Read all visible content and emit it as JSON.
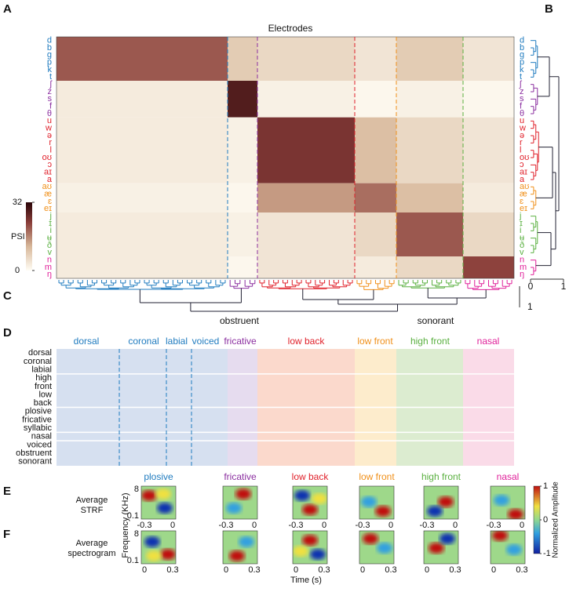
{
  "panel_labels": [
    "A",
    "B",
    "C",
    "D",
    "E",
    "F"
  ],
  "panel_a": {
    "title": "Electrodes",
    "groups": [
      {
        "name": "plosive",
        "color": "#1f7bbf",
        "phonemes": [
          "d",
          "b",
          "g",
          "p",
          "k",
          "t"
        ]
      },
      {
        "name": "fricative",
        "color": "#8b2fa0",
        "phonemes": [
          "ʃ",
          "z",
          "s",
          "f",
          "θ"
        ]
      },
      {
        "name": "low back",
        "color": "#e0202a",
        "phonemes": [
          "u",
          "w",
          "ə",
          "r",
          "l",
          "oʊ",
          "ɔ",
          "aɪ",
          "a"
        ]
      },
      {
        "name": "low front",
        "color": "#f0901a",
        "phonemes": [
          "aʊ",
          "æ",
          "ɛ",
          "eɪ"
        ]
      },
      {
        "name": "high front",
        "color": "#5ab040",
        "phonemes": [
          "j",
          "ɪ",
          "i",
          "ʉ",
          "ð",
          "v"
        ]
      },
      {
        "name": "nasal",
        "color": "#e0209a",
        "phonemes": [
          "n",
          "m",
          "ŋ"
        ]
      }
    ],
    "matrix": [
      [
        20,
        8,
        6,
        4,
        8,
        4
      ],
      [
        3,
        28,
        2,
        1,
        2,
        1
      ],
      [
        3,
        2,
        24,
        10,
        6,
        4
      ],
      [
        2,
        1,
        14,
        18,
        10,
        3
      ],
      [
        3,
        2,
        4,
        6,
        20,
        6
      ],
      [
        3,
        1,
        4,
        3,
        6,
        22
      ]
    ],
    "colorbar": {
      "label": "PSI",
      "ticks": [
        32,
        0
      ]
    }
  },
  "panel_b": {
    "ticks": [
      0,
      1
    ]
  },
  "panel_c": {
    "labels": [
      "obstruent",
      "sonorant"
    ],
    "scale": 1
  },
  "panel_d": {
    "groups": [
      "dorsal",
      "coronal",
      "labial",
      "voiced",
      "fricative",
      "low back",
      "low front",
      "high front",
      "nasal"
    ],
    "features": [
      "dorsal",
      "coronal",
      "labial",
      "high",
      "front",
      "low",
      "back",
      "plosive",
      "fricative",
      "syllabic",
      "nasal",
      "voiced",
      "obstruent",
      "sonorant"
    ]
  },
  "panel_ef": {
    "columns": [
      "plosive",
      "fricative",
      "low back",
      "low front",
      "high front",
      "nasal"
    ],
    "strf_label": [
      "Average",
      "STRF"
    ],
    "spec_label": [
      "Average",
      "spectrogram"
    ],
    "y_label": "Frequency (KHz)",
    "x_label": "Time (s)",
    "freq_ticks": [
      8,
      0.1
    ],
    "strf_xticks": [
      -0.3,
      0
    ],
    "spec_xticks": [
      0,
      0.3
    ],
    "colorbar": {
      "label": "Normalized Amplitude",
      "ticks": [
        1,
        0,
        -1
      ]
    }
  }
}
